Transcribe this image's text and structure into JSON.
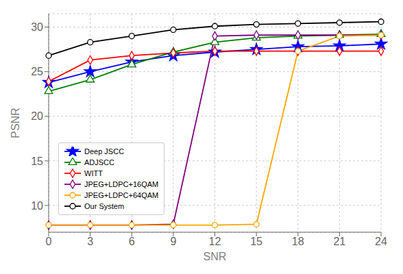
{
  "chart_data": {
    "type": "line",
    "xlabel": "SNR",
    "ylabel": "PSNR",
    "x": [
      0,
      3,
      6,
      9,
      12,
      15,
      18,
      21,
      24
    ],
    "series": [
      {
        "name": "Deep JSCC",
        "color": "#0000ff",
        "marker": "star",
        "values": [
          23.8,
          25.0,
          26.1,
          26.8,
          27.2,
          27.5,
          27.8,
          27.9,
          28.1
        ]
      },
      {
        "name": "ADJSCC",
        "color": "#008000",
        "marker": "triangle",
        "values": [
          22.8,
          24.1,
          25.8,
          27.2,
          28.3,
          28.8,
          29.0,
          29.1,
          29.2
        ]
      },
      {
        "name": "WITT",
        "color": "#ff0000",
        "marker": "diamond",
        "values": [
          23.9,
          26.3,
          26.8,
          27.1,
          27.3,
          27.3,
          27.3,
          27.3,
          27.3
        ]
      },
      {
        "name": "JPEG+LDPC+16QAM",
        "color": "#800080",
        "marker": "diamond",
        "values": [
          7.8,
          7.8,
          7.8,
          7.9,
          29.0,
          29.1,
          29.1,
          29.1,
          29.1
        ]
      },
      {
        "name": "JPEG+LDPC+64QAM",
        "color": "#ffa500",
        "marker": "circle",
        "values": [
          7.8,
          7.8,
          7.8,
          7.8,
          7.8,
          7.9,
          27.3,
          29.0,
          29.1
        ]
      },
      {
        "name": "Our System",
        "color": "#000000",
        "marker": "circle",
        "values": [
          26.8,
          28.3,
          29.0,
          29.7,
          30.1,
          30.3,
          30.4,
          30.5,
          30.6
        ]
      }
    ],
    "xlim": [
      0,
      24
    ],
    "xticks": [
      0,
      3,
      6,
      9,
      12,
      15,
      18,
      21,
      24
    ],
    "ylim": [
      7.0,
      31.5
    ],
    "yticks": [
      10,
      15,
      20,
      25,
      30
    ],
    "grid": true,
    "legend": "lower left"
  }
}
